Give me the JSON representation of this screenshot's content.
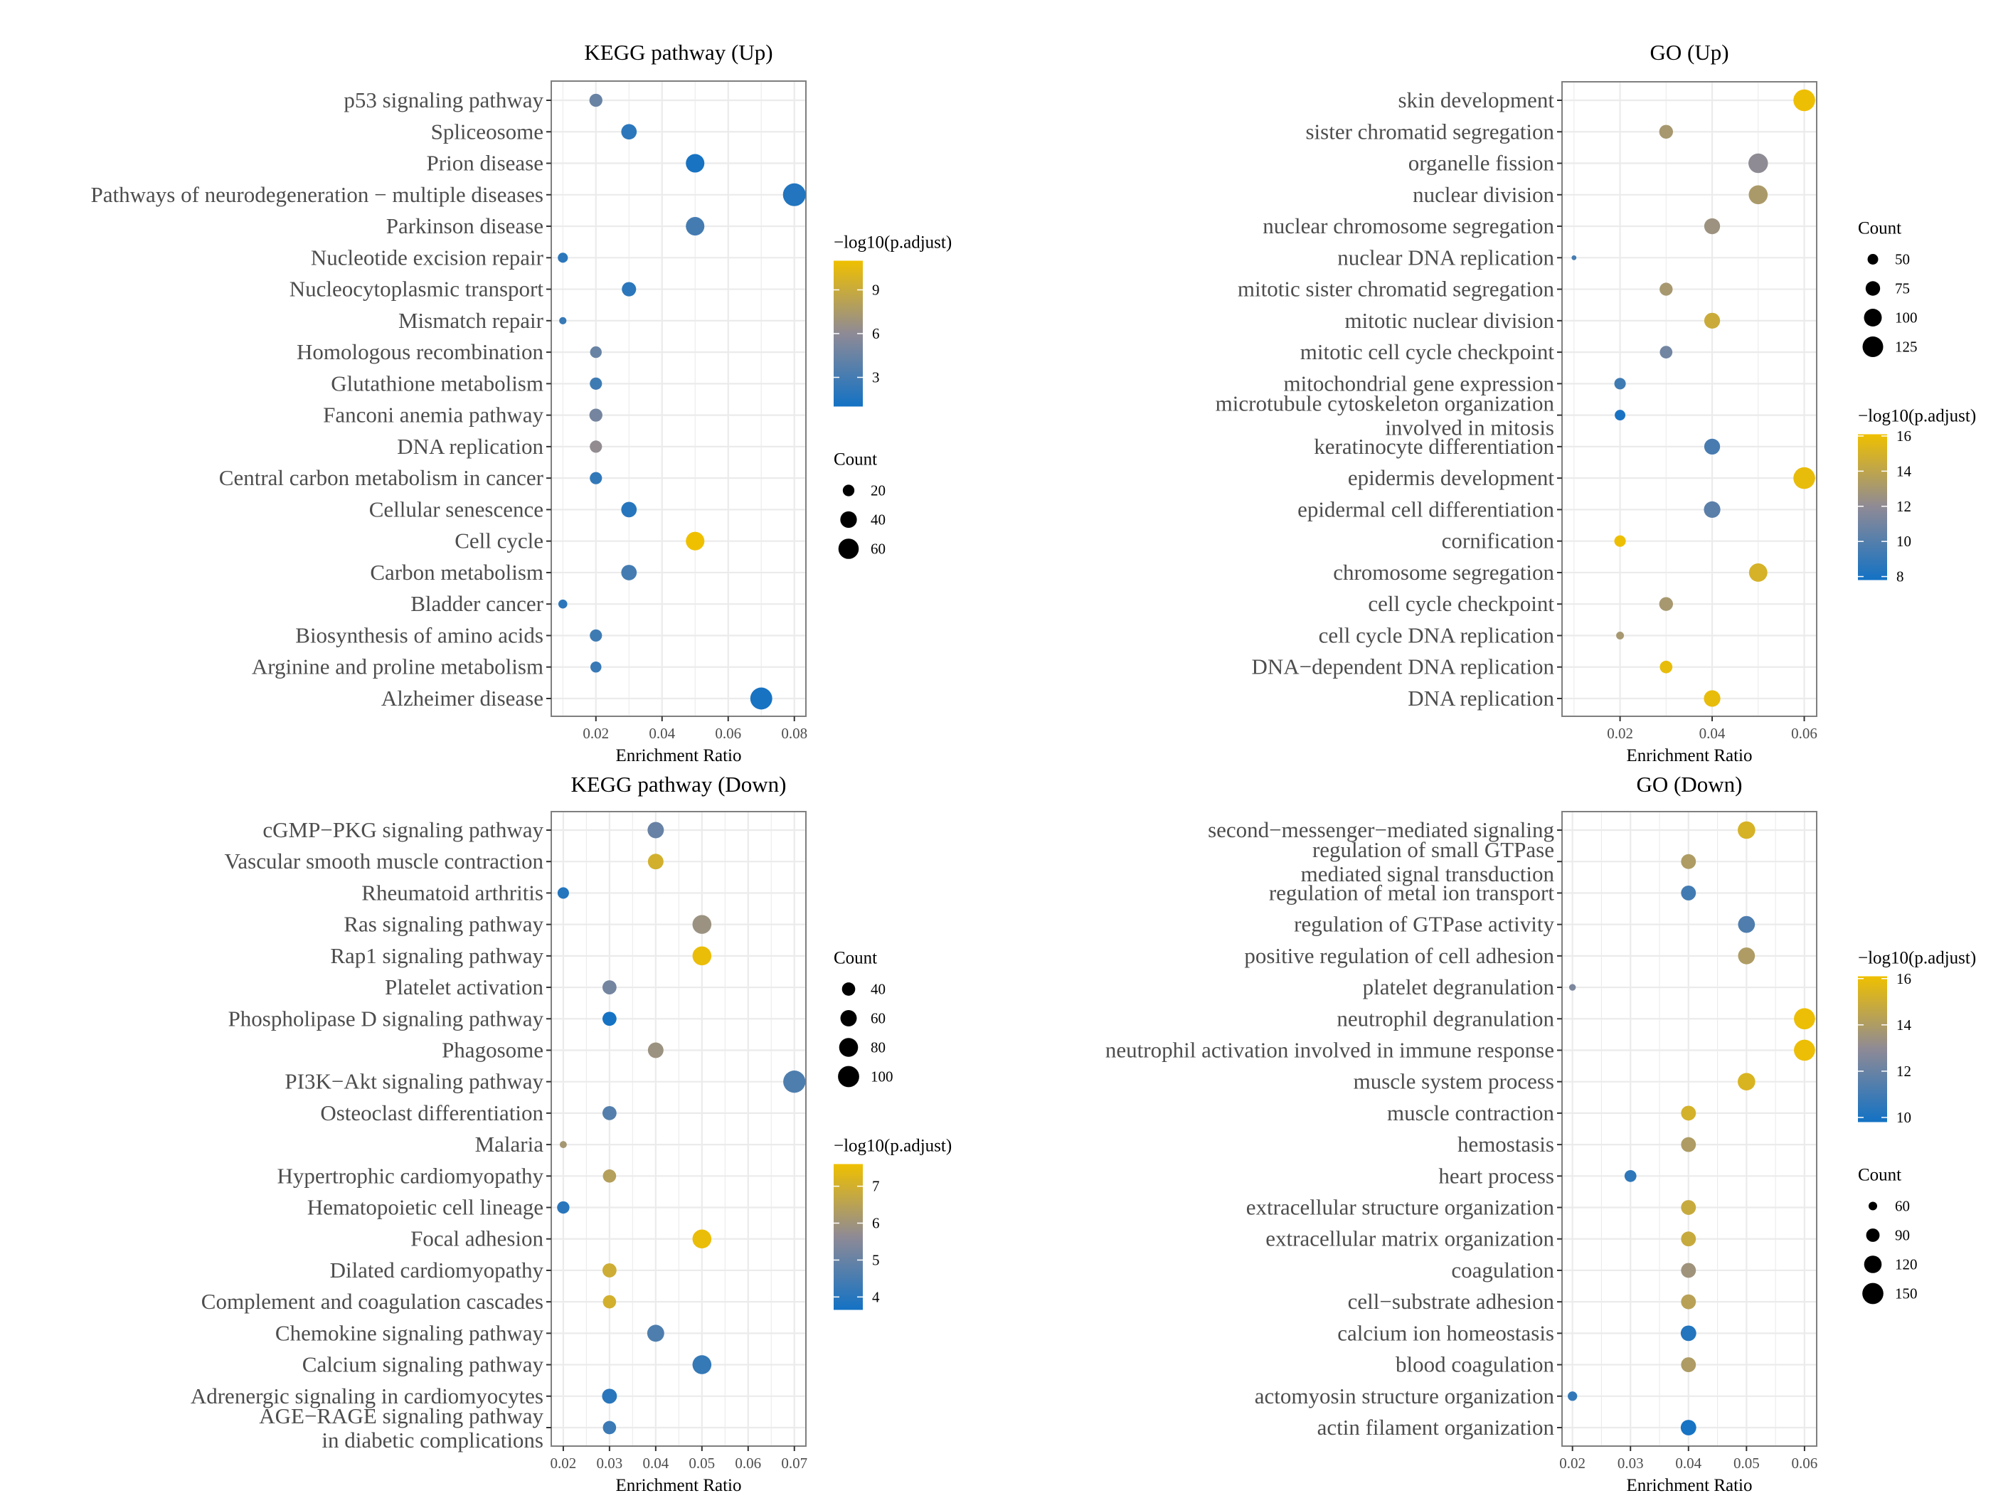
{
  "figure": {
    "colors": {
      "low": "#1372C4",
      "mid": "#8E8A96",
      "high": "#EFC000",
      "grid": "#EBEBEB",
      "panel_border": "#7F7F7F"
    }
  },
  "chart_data": [
    {
      "type": "scatter",
      "id": "kegg_up",
      "title": "KEGG pathway (Up)",
      "xlabel": "Enrichment Ratio",
      "ylabel": "",
      "xlim": [
        0.0065,
        0.0835
      ],
      "xticks": [
        0.02,
        0.04,
        0.06,
        0.08
      ],
      "xtick_labels": [
        "0.02",
        "0.04",
        "0.06",
        "0.08"
      ],
      "grid": true,
      "color_legend": {
        "title": "−log10(p.adjust)",
        "range": [
          1,
          11
        ],
        "ticks": [
          3,
          6,
          9
        ],
        "tick_labels": [
          "3",
          "6",
          "9"
        ]
      },
      "size_legend": {
        "title": "Count",
        "values": [
          20,
          40,
          60
        ],
        "labels": [
          "20",
          "40",
          "60"
        ]
      },
      "size_range": [
        5,
        75
      ],
      "legend_order": [
        "color",
        "size"
      ],
      "legend_placement": "right",
      "terms": [
        {
          "label": [
            "p53 signaling pathway"
          ],
          "x": 0.02,
          "count": 25,
          "color": 4.5
        },
        {
          "label": [
            "Spliceosome"
          ],
          "x": 0.03,
          "count": 35,
          "color": 2.0
        },
        {
          "label": [
            "Prion disease"
          ],
          "x": 0.05,
          "count": 50,
          "color": 1.2
        },
        {
          "label": [
            "Pathways of neurodegeneration − multiple diseases"
          ],
          "x": 0.08,
          "count": 75,
          "color": 1.6
        },
        {
          "label": [
            "Parkinson disease"
          ],
          "x": 0.05,
          "count": 50,
          "color": 3.0
        },
        {
          "label": [
            "Nucleotide excision repair"
          ],
          "x": 0.01,
          "count": 15,
          "color": 2.0
        },
        {
          "label": [
            "Nucleocytoplasmic transport"
          ],
          "x": 0.03,
          "count": 30,
          "color": 2.0
        },
        {
          "label": [
            "Mismatch repair"
          ],
          "x": 0.01,
          "count": 8,
          "color": 2.5
        },
        {
          "label": [
            "Homologous recombination"
          ],
          "x": 0.02,
          "count": 20,
          "color": 4.5
        },
        {
          "label": [
            "Glutathione metabolism"
          ],
          "x": 0.02,
          "count": 22,
          "color": 2.8
        },
        {
          "label": [
            "Fanconi anemia pathway"
          ],
          "x": 0.02,
          "count": 25,
          "color": 5.0
        },
        {
          "label": [
            "DNA replication"
          ],
          "x": 0.02,
          "count": 22,
          "color": 6.2
        },
        {
          "label": [
            "Central carbon metabolism in cancer"
          ],
          "x": 0.02,
          "count": 22,
          "color": 2.2
        },
        {
          "label": [
            "Cellular senescence"
          ],
          "x": 0.03,
          "count": 35,
          "color": 1.8
        },
        {
          "label": [
            "Cell cycle"
          ],
          "x": 0.05,
          "count": 50,
          "color": 11.0
        },
        {
          "label": [
            "Carbon metabolism"
          ],
          "x": 0.03,
          "count": 35,
          "color": 3.0
        },
        {
          "label": [
            "Bladder cancer"
          ],
          "x": 0.01,
          "count": 12,
          "color": 2.0
        },
        {
          "label": [
            "Biosynthesis of amino acids"
          ],
          "x": 0.02,
          "count": 22,
          "color": 2.8
        },
        {
          "label": [
            "Arginine and proline metabolism"
          ],
          "x": 0.02,
          "count": 18,
          "color": 2.5
        },
        {
          "label": [
            "Alzheimer disease"
          ],
          "x": 0.07,
          "count": 70,
          "color": 1.2
        }
      ]
    },
    {
      "type": "scatter",
      "id": "go_up",
      "title": "GO (Up)",
      "xlabel": "Enrichment Ratio",
      "ylabel": "",
      "xlim": [
        0.0074,
        0.0627
      ],
      "xticks": [
        0.02,
        0.04,
        0.06
      ],
      "xtick_labels": [
        "0.02",
        "0.04",
        "0.06"
      ],
      "grid": true,
      "color_legend": {
        "title": "−log10(p.adjust)",
        "range": [
          7.8,
          16.1
        ],
        "ticks": [
          8,
          10,
          12,
          14,
          16
        ],
        "tick_labels": [
          "8",
          "10",
          "12",
          "14",
          "16"
        ]
      },
      "size_legend": {
        "title": "Count",
        "values": [
          50,
          75,
          100,
          125
        ],
        "labels": [
          "50",
          "75",
          "100",
          "125"
        ]
      },
      "size_range": [
        20,
        145
      ],
      "legend_order": [
        "size",
        "color"
      ],
      "legend_placement": "right",
      "terms": [
        {
          "label": [
            "skin development"
          ],
          "x": 0.06,
          "count": 135,
          "color": 16.0
        },
        {
          "label": [
            "sister chromatid segregation"
          ],
          "x": 0.03,
          "count": 70,
          "color": 13.0
        },
        {
          "label": [
            "organelle fission"
          ],
          "x": 0.05,
          "count": 115,
          "color": 12.0
        },
        {
          "label": [
            "nuclear division"
          ],
          "x": 0.05,
          "count": 110,
          "color": 13.2
        },
        {
          "label": [
            "nuclear chromosome segregation"
          ],
          "x": 0.04,
          "count": 85,
          "color": 12.6
        },
        {
          "label": [
            "nuclear DNA replication"
          ],
          "x": 0.01,
          "count": 22,
          "color": 9.5
        },
        {
          "label": [
            "mitotic sister chromatid segregation"
          ],
          "x": 0.03,
          "count": 65,
          "color": 13.0
        },
        {
          "label": [
            "mitotic nuclear division"
          ],
          "x": 0.04,
          "count": 85,
          "color": 14.5
        },
        {
          "label": [
            "mitotic cell cycle checkpoint"
          ],
          "x": 0.03,
          "count": 62,
          "color": 11.0
        },
        {
          "label": [
            "mitochondrial gene expression"
          ],
          "x": 0.02,
          "count": 55,
          "color": 9.3
        },
        {
          "label": [
            "microtubule cytoskeleton organization",
            "involved in mitosis"
          ],
          "x": 0.02,
          "count": 50,
          "color": 8.0
        },
        {
          "label": [
            "keratinocyte differentiation"
          ],
          "x": 0.04,
          "count": 85,
          "color": 9.6
        },
        {
          "label": [
            "epidermis development"
          ],
          "x": 0.06,
          "count": 135,
          "color": 15.8
        },
        {
          "label": [
            "epidermal cell differentiation"
          ],
          "x": 0.04,
          "count": 90,
          "color": 10.2
        },
        {
          "label": [
            "cornification"
          ],
          "x": 0.02,
          "count": 55,
          "color": 16.0
        },
        {
          "label": [
            "chromosome segregation"
          ],
          "x": 0.05,
          "count": 105,
          "color": 15.0
        },
        {
          "label": [
            "cell cycle checkpoint"
          ],
          "x": 0.03,
          "count": 70,
          "color": 13.0
        },
        {
          "label": [
            "cell cycle DNA replication"
          ],
          "x": 0.02,
          "count": 35,
          "color": 13.0
        },
        {
          "label": [
            "DNA−dependent DNA replication"
          ],
          "x": 0.03,
          "count": 62,
          "color": 15.8
        },
        {
          "label": [
            "DNA replication"
          ],
          "x": 0.04,
          "count": 90,
          "color": 15.8
        }
      ]
    },
    {
      "type": "scatter",
      "id": "kegg_down",
      "title": "KEGG pathway (Down)",
      "xlabel": "Enrichment Ratio",
      "ylabel": "",
      "xlim": [
        0.0174,
        0.0725
      ],
      "xticks": [
        0.02,
        0.03,
        0.04,
        0.05,
        0.06,
        0.07
      ],
      "xtick_labels": [
        "0.02",
        "0.03",
        "0.04",
        "0.05",
        "0.06",
        "0.07"
      ],
      "grid": true,
      "color_legend": {
        "title": "−log10(p.adjust)",
        "range": [
          3.65,
          7.6
        ],
        "ticks": [
          4,
          5,
          6,
          7
        ],
        "tick_labels": [
          "4",
          "5",
          "6",
          "7"
        ]
      },
      "size_legend": {
        "title": "Count",
        "values": [
          40,
          60,
          80,
          100
        ],
        "labels": [
          "40",
          "60",
          "80",
          "100"
        ]
      },
      "size_range": [
        8,
        115
      ],
      "legend_order": [
        "size",
        "color"
      ],
      "legend_placement": "right",
      "terms": [
        {
          "label": [
            "cGMP−PKG signaling pathway"
          ],
          "x": 0.04,
          "count": 60,
          "color": 5.0
        },
        {
          "label": [
            "Vascular smooth muscle contraction"
          ],
          "x": 0.04,
          "count": 55,
          "color": 7.0
        },
        {
          "label": [
            "Rheumatoid arthritis"
          ],
          "x": 0.02,
          "count": 30,
          "color": 3.9
        },
        {
          "label": [
            "Ras signaling pathway"
          ],
          "x": 0.05,
          "count": 80,
          "color": 5.9
        },
        {
          "label": [
            "Rap1 signaling pathway"
          ],
          "x": 0.05,
          "count": 80,
          "color": 7.5
        },
        {
          "label": [
            "Platelet activation"
          ],
          "x": 0.03,
          "count": 45,
          "color": 5.2
        },
        {
          "label": [
            "Phospholipase D signaling pathway"
          ],
          "x": 0.03,
          "count": 45,
          "color": 3.7
        },
        {
          "label": [
            "Phagosome"
          ],
          "x": 0.04,
          "count": 55,
          "color": 5.9
        },
        {
          "label": [
            "PI3K−Akt signaling pathway"
          ],
          "x": 0.07,
          "count": 110,
          "color": 4.6
        },
        {
          "label": [
            "Osteoclast differentiation"
          ],
          "x": 0.03,
          "count": 45,
          "color": 4.7
        },
        {
          "label": [
            "Malaria"
          ],
          "x": 0.02,
          "count": 12,
          "color": 6.1
        },
        {
          "label": [
            "Hypertrophic cardiomyopathy"
          ],
          "x": 0.03,
          "count": 40,
          "color": 6.4
        },
        {
          "label": [
            "Hematopoietic cell lineage"
          ],
          "x": 0.02,
          "count": 35,
          "color": 4.0
        },
        {
          "label": [
            "Focal adhesion"
          ],
          "x": 0.05,
          "count": 80,
          "color": 7.5
        },
        {
          "label": [
            "Dilated cardiomyopathy"
          ],
          "x": 0.03,
          "count": 45,
          "color": 6.9
        },
        {
          "label": [
            "Complement and coagulation cascades"
          ],
          "x": 0.03,
          "count": 40,
          "color": 7.0
        },
        {
          "label": [
            "Chemokine signaling pathway"
          ],
          "x": 0.04,
          "count": 65,
          "color": 4.6
        },
        {
          "label": [
            "Calcium signaling pathway"
          ],
          "x": 0.05,
          "count": 80,
          "color": 4.2
        },
        {
          "label": [
            "Adrenergic signaling in cardiomyocytes"
          ],
          "x": 0.03,
          "count": 50,
          "color": 4.0
        },
        {
          "label": [
            "AGE−RAGE signaling pathway",
            "in diabetic complications"
          ],
          "x": 0.03,
          "count": 40,
          "color": 4.3
        }
      ]
    },
    {
      "type": "scatter",
      "id": "go_down",
      "title": "GO (Down)",
      "xlabel": "Enrichment Ratio",
      "ylabel": "",
      "xlim": [
        0.0182,
        0.0621
      ],
      "xticks": [
        0.02,
        0.03,
        0.04,
        0.05,
        0.06
      ],
      "xtick_labels": [
        "0.02",
        "0.03",
        "0.04",
        "0.05",
        "0.06"
      ],
      "grid": true,
      "color_legend": {
        "title": "−log10(p.adjust)",
        "range": [
          9.8,
          16.1
        ],
        "ticks": [
          10,
          12,
          14,
          16
        ],
        "tick_labels": [
          "10",
          "12",
          "14",
          "16"
        ]
      },
      "size_legend": {
        "title": "Count",
        "values": [
          60,
          90,
          120,
          150
        ],
        "labels": [
          "60",
          "90",
          "120",
          "150"
        ]
      },
      "size_range": [
        45,
        165
      ],
      "legend_order": [
        "color",
        "size"
      ],
      "legend_placement": "right",
      "terms": [
        {
          "label": [
            "second−messenger−mediated signaling"
          ],
          "x": 0.05,
          "count": 120,
          "color": 15.3
        },
        {
          "label": [
            "regulation of small GTPase",
            "mediated signal transduction"
          ],
          "x": 0.04,
          "count": 100,
          "color": 14.0
        },
        {
          "label": [
            "regulation of metal ion transport"
          ],
          "x": 0.04,
          "count": 100,
          "color": 11.0
        },
        {
          "label": [
            "regulation of GTPase activity"
          ],
          "x": 0.05,
          "count": 115,
          "color": 11.3
        },
        {
          "label": [
            "positive regulation of cell adhesion"
          ],
          "x": 0.05,
          "count": 115,
          "color": 14.0
        },
        {
          "label": [
            "platelet degranulation"
          ],
          "x": 0.02,
          "count": 50,
          "color": 12.5
        },
        {
          "label": [
            "neutrophil degranulation"
          ],
          "x": 0.06,
          "count": 150,
          "color": 16.0
        },
        {
          "label": [
            "neutrophil activation involved in immune response"
          ],
          "x": 0.06,
          "count": 150,
          "color": 16.0
        },
        {
          "label": [
            "muscle system process"
          ],
          "x": 0.05,
          "count": 120,
          "color": 15.4
        },
        {
          "label": [
            "muscle contraction"
          ],
          "x": 0.04,
          "count": 100,
          "color": 15.2
        },
        {
          "label": [
            "hemostasis"
          ],
          "x": 0.04,
          "count": 100,
          "color": 14.0
        },
        {
          "label": [
            "heart process"
          ],
          "x": 0.03,
          "count": 80,
          "color": 10.5
        },
        {
          "label": [
            "extracellular structure organization"
          ],
          "x": 0.04,
          "count": 100,
          "color": 14.8
        },
        {
          "label": [
            "extracellular matrix organization"
          ],
          "x": 0.04,
          "count": 100,
          "color": 14.8
        },
        {
          "label": [
            "coagulation"
          ],
          "x": 0.04,
          "count": 100,
          "color": 13.5
        },
        {
          "label": [
            "cell−substrate adhesion"
          ],
          "x": 0.04,
          "count": 100,
          "color": 14.3
        },
        {
          "label": [
            "calcium ion homeostasis"
          ],
          "x": 0.04,
          "count": 105,
          "color": 10.2
        },
        {
          "label": [
            "blood coagulation"
          ],
          "x": 0.04,
          "count": 100,
          "color": 14.0
        },
        {
          "label": [
            "actomyosin structure organization"
          ],
          "x": 0.02,
          "count": 65,
          "color": 10.6
        },
        {
          "label": [
            "actin filament organization"
          ],
          "x": 0.04,
          "count": 105,
          "color": 9.9
        }
      ]
    }
  ]
}
